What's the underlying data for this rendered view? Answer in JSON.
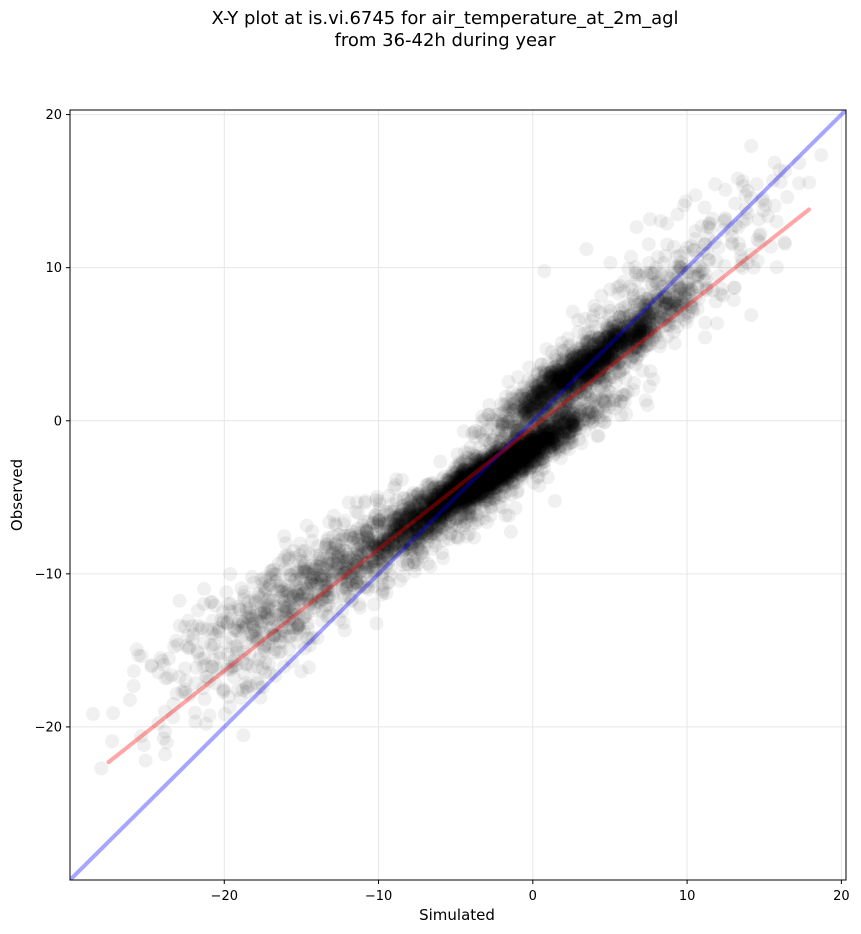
{
  "chart_data": {
    "type": "scatter",
    "title_line1": "X-Y plot at is.vi.6745 for air_temperature_at_2m_agl",
    "title_line2": "from 36-42h during year",
    "xlabel": "Simulated",
    "ylabel": "Observed",
    "xlim": [
      -30,
      20.3
    ],
    "ylim": [
      -30,
      20.3
    ],
    "xticks": [
      -20,
      -10,
      0,
      10,
      20
    ],
    "yticks": [
      -20,
      -10,
      0,
      10,
      20
    ],
    "xtick_labels": [
      "−20",
      "−10",
      "0",
      "10",
      "20"
    ],
    "ytick_labels": [
      "−20",
      "−10",
      "0",
      "10",
      "20"
    ],
    "grid": true,
    "point_color": "#000000",
    "point_alpha": 0.06,
    "identity_line": {
      "color": "#0000ff",
      "x": [
        -30,
        20.3
      ],
      "y": [
        -30,
        20.3
      ]
    },
    "fit_line": {
      "color": "#ff0000",
      "x": [
        -27.5,
        17.9
      ],
      "y": [
        -22.3,
        13.8
      ]
    },
    "clusters": [
      {
        "x": -3.0,
        "y": -3.6,
        "sx": 3.2,
        "sy": 1.4,
        "rho": 0.85,
        "n": 2800
      },
      {
        "x": 3.5,
        "y": 3.6,
        "sx": 3.0,
        "sy": 1.5,
        "rho": 0.85,
        "n": 1600
      },
      {
        "x": -10.5,
        "y": -8.6,
        "sx": 5.0,
        "sy": 2.0,
        "rho": 0.7,
        "n": 900
      },
      {
        "x": -19.0,
        "y": -14.5,
        "sx": 3.5,
        "sy": 2.5,
        "rho": 0.5,
        "n": 260
      },
      {
        "x": 9.0,
        "y": 9.0,
        "sx": 3.5,
        "sy": 2.5,
        "rho": 0.6,
        "n": 320
      }
    ]
  }
}
